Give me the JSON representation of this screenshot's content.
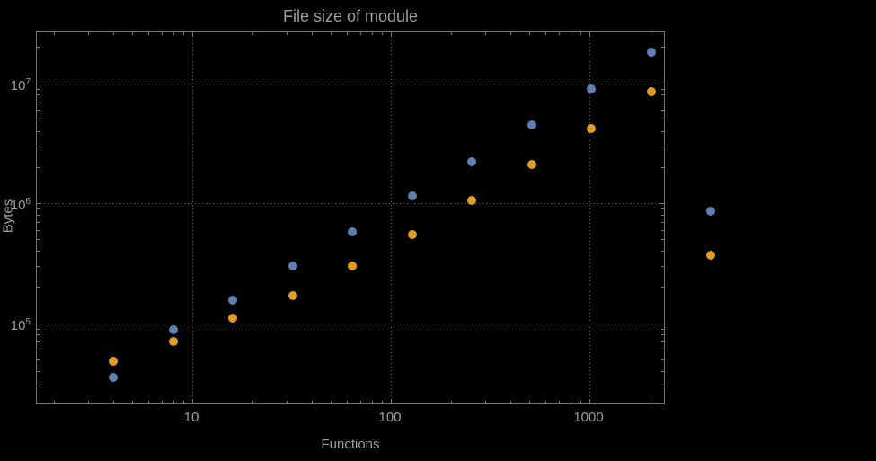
{
  "chart_data": {
    "type": "scatter",
    "title": "File size of module",
    "xlabel": "Functions",
    "ylabel": "Bytes",
    "x_scale": "log",
    "y_scale": "log",
    "grid": "dotted",
    "legend": "none",
    "x_ticks": [
      10,
      100,
      1000
    ],
    "x_tick_labels": [
      "10",
      "100",
      "1000"
    ],
    "y_ticks": [
      100000,
      1000000,
      10000000
    ],
    "y_tick_labels": [
      "10^5",
      "10^6",
      "10^7"
    ],
    "x_range_approx": [
      1.7,
      2400
    ],
    "y_range_approx": [
      20000,
      26000000
    ],
    "x": [
      4,
      8,
      16,
      32,
      64,
      128,
      256,
      512,
      1024,
      2048,
      4096
    ],
    "series": [
      {
        "name": "series-1-blue",
        "color": "#5e81b5",
        "values": [
          35000,
          88000,
          155000,
          300000,
          580000,
          1150000,
          2200000,
          4500000,
          9000000,
          18000000,
          850000
        ]
      },
      {
        "name": "series-2-orange",
        "color": "#e09c24",
        "values": [
          48000,
          70000,
          110000,
          170000,
          300000,
          550000,
          1050000,
          2100000,
          4200000,
          8500000,
          370000
        ]
      }
    ],
    "colors": {
      "background": "#000000",
      "frame": "#757575",
      "grid": "#666666",
      "text": "#9e9e9e"
    }
  }
}
